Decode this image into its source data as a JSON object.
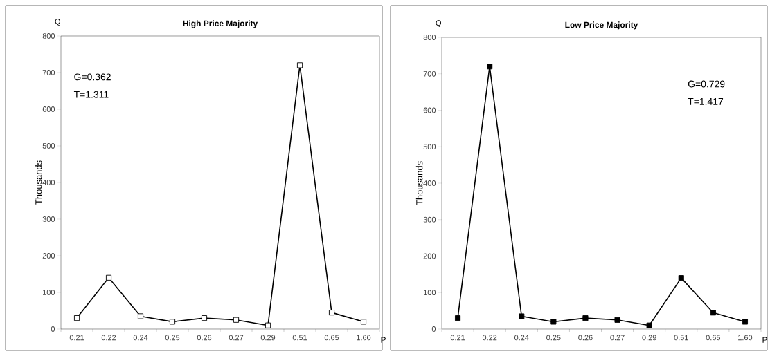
{
  "chart_data": [
    {
      "type": "line",
      "title": "High Price Majority",
      "ylabel": "Thousands",
      "xlabel": "P",
      "annotations": [
        "Q",
        "G=0.362",
        "T=1.311"
      ],
      "categories": [
        "0.21",
        "0.22",
        "0.24",
        "0.25",
        "0.26",
        "0.27",
        "0.29",
        "0.51",
        "0.65",
        "1.60"
      ],
      "series": [
        {
          "color": "#000000",
          "colors": [
            "#ffffff",
            "#ffffff",
            "#ffffff",
            "#ffffff",
            "#ffffff",
            "#ffffff",
            "#ffffff",
            "#ffffff",
            "#ffffff",
            "#ffffff"
          ],
          "values": [
            30,
            140,
            35,
            20,
            30,
            25,
            10,
            720,
            45,
            20
          ]
        }
      ],
      "ylim": [
        0,
        800
      ],
      "yticks": [
        0,
        100,
        200,
        300,
        400,
        500,
        600,
        700,
        800
      ],
      "marker": "square",
      "line_style": "solid"
    },
    {
      "type": "line",
      "title": "Low Price Majority",
      "ylabel": "Thousands",
      "xlabel": "P",
      "annotations": [
        "Q",
        "G=0.729",
        "T=1.417"
      ],
      "categories": [
        "0.21",
        "0.22",
        "0.24",
        "0.25",
        "0.26",
        "0.27",
        "0.29",
        "0.51",
        "0.65",
        "1.60"
      ],
      "series": [
        {
          "color": "#000000",
          "colors": [
            "#000000",
            "#000000",
            "#000000",
            "#000000",
            "#000000",
            "#000000",
            "#000000",
            "#000000",
            "#000000",
            "#000000"
          ],
          "values": [
            30,
            720,
            35,
            20,
            30,
            25,
            10,
            140,
            45,
            20
          ]
        }
      ],
      "ylim": [
        0,
        800
      ],
      "yticks": [
        0,
        100,
        200,
        300,
        400,
        500,
        600,
        700,
        800
      ],
      "marker": "square",
      "line_style": "solid"
    }
  ]
}
